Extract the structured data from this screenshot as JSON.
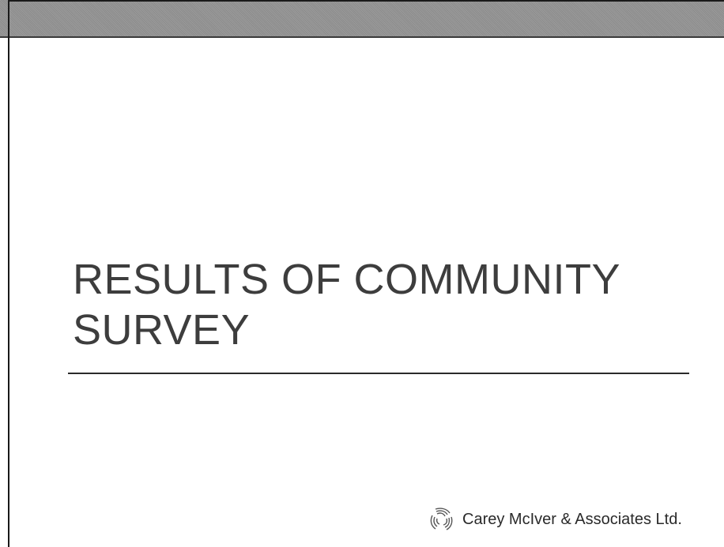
{
  "slide": {
    "title_line_1": "RESULTS OF COMMUNITY",
    "title_line_2": "SURVEY"
  },
  "footer": {
    "company_name": "Carey McIver & Associates Ltd."
  },
  "colors": {
    "band": "#959595",
    "title_text": "#3d3d3d",
    "rule": "#2a2a2a"
  }
}
